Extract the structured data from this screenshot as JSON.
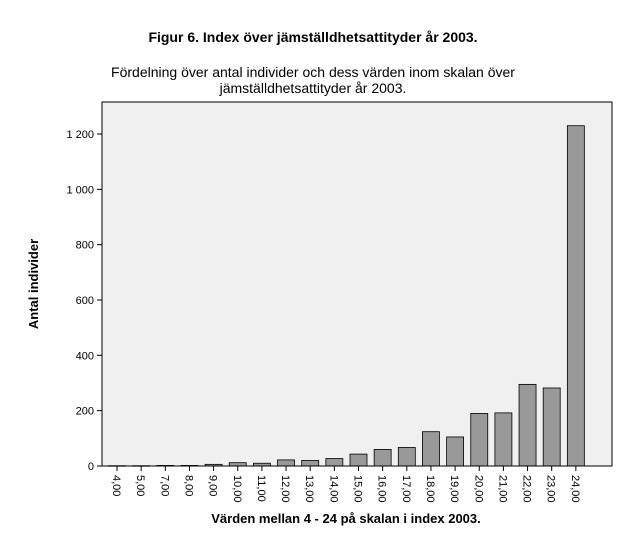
{
  "figure_title": "Figur 6. Index över jämställdhetsattityder år 2003.",
  "colors": {
    "plot_background": "#f0f0f0",
    "bar_fill": "#999999",
    "bar_stroke": "#000000",
    "frame": "#000000"
  },
  "chart_data": {
    "type": "bar",
    "title_lines": [
      "Fördelning över antal individer och dess värden inom skalan över",
      "jämställdhetsattityder år 2003."
    ],
    "xlabel": "Värden mellan 4 - 24 på skalan i index 2003.",
    "ylabel": "Antal individer",
    "ylim": [
      0,
      1300
    ],
    "yticks": [
      0,
      200,
      400,
      600,
      800,
      1000,
      1200
    ],
    "ytick_labels": [
      "0",
      "200",
      "400",
      "600",
      "800",
      "1 000",
      "1 200"
    ],
    "categories": [
      "4,00",
      "5,00",
      "7,00",
      "8,00",
      "9,00",
      "10,00",
      "11,00",
      "12,00",
      "13,00",
      "14,00",
      "15,00",
      "16,00",
      "17,00",
      "18,00",
      "19,00",
      "20,00",
      "21,00",
      "22,00",
      "23,00",
      "24,00"
    ],
    "values": [
      1,
      1,
      2,
      2,
      6,
      12,
      10,
      22,
      20,
      27,
      43,
      60,
      67,
      124,
      105,
      190,
      192,
      295,
      282,
      1230
    ],
    "grid": false,
    "legend": "none"
  }
}
